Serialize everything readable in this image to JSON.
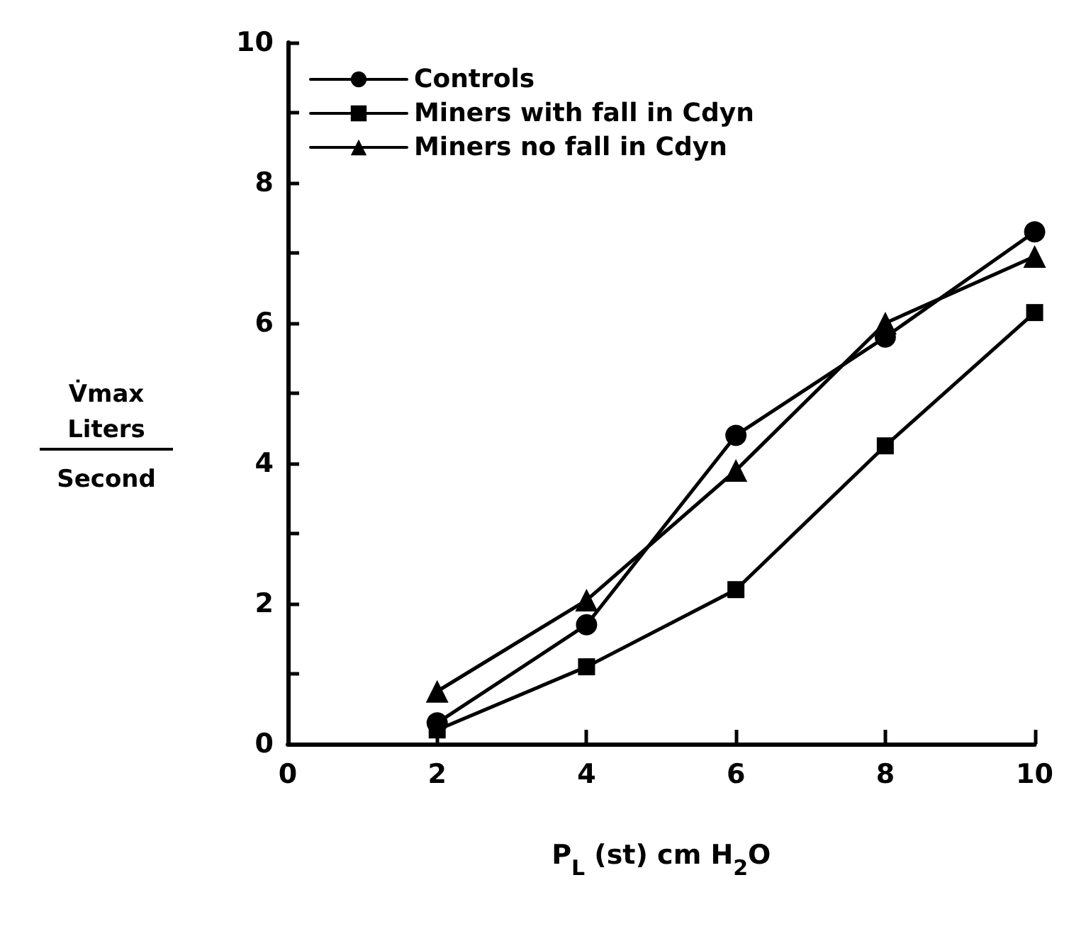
{
  "chart_data": {
    "type": "line",
    "xlabel": "P$_{L}$ (st) cm H$_{2}$O",
    "ylabel": "V̇max\nLiters\nSecond",
    "x": [
      2,
      4,
      6,
      8,
      10
    ],
    "series": [
      {
        "name": "Controls",
        "color": "#000000",
        "marker": "circle",
        "values": [
          0.3,
          1.7,
          4.4,
          5.8,
          7.3
        ]
      },
      {
        "name": "Miners with fall in Cdyn",
        "color": "#000000",
        "marker": "square",
        "values": [
          0.2,
          1.1,
          2.2,
          4.25,
          6.15
        ]
      },
      {
        "name": "Miners no fall in Cdyn",
        "color": "#000000",
        "marker": "triangle",
        "values": [
          0.75,
          2.05,
          3.9,
          6.0,
          6.95
        ]
      }
    ],
    "xlim": [
      0,
      10
    ],
    "xticks": [
      0,
      2,
      4,
      6,
      8,
      10
    ],
    "ylim": [
      0,
      10
    ],
    "yticks": [
      0,
      {
        "value": 1,
        "label": null
      },
      2,
      {
        "value": 3,
        "label": null
      },
      4,
      {
        "value": 5,
        "label": null
      },
      6,
      {
        "value": 7,
        "label": null
      },
      8,
      {
        "value": 9,
        "label": null
      },
      10
    ],
    "grid": false,
    "legend": "top left",
    "line_style": "solid"
  }
}
